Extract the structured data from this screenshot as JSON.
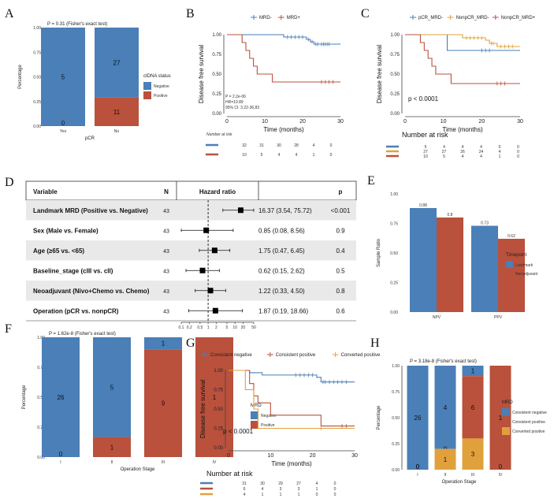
{
  "colors": {
    "blue": "#4A7FB7",
    "red": "#B9513C",
    "orange": "#E0A13C",
    "grey": "#e9e9e9",
    "dark": "#111111"
  },
  "chart_data": [
    {
      "panel": "A",
      "type": "bar",
      "stacked": true,
      "percent": true,
      "title": "P = 0.31 (Fisher's exact test)",
      "xlabel": "pCR",
      "ylabel": "Percentage",
      "categories": [
        "Yes",
        "No"
      ],
      "yticks": [
        "0.00",
        "0.25",
        "0.50",
        "0.75",
        "1.00"
      ],
      "legend_title": "ctDNA status",
      "legend_position": "right",
      "series": [
        {
          "name": "Negative",
          "color": "#4A7FB7",
          "counts": [
            5,
            27
          ],
          "fractions": [
            1.0,
            0.711
          ]
        },
        {
          "name": "Positive",
          "color": "#B9513C",
          "counts": [
            0,
            11
          ],
          "fractions": [
            0.0,
            0.289
          ]
        }
      ]
    },
    {
      "panel": "B",
      "type": "line",
      "subtype": "kaplan-meier",
      "xlabel": "Time (months)",
      "ylabel": "Disease free survival",
      "xticks": [
        "0",
        "10",
        "20",
        "30"
      ],
      "yticks": [
        "0.00",
        "0.25",
        "0.50",
        "0.75",
        "1.00"
      ],
      "xlim": [
        0,
        30
      ],
      "ylim": [
        0,
        1
      ],
      "legend": [
        {
          "name": "MRD-",
          "color": "#4A7FB7"
        },
        {
          "name": "MRD+",
          "color": "#B9513C"
        }
      ],
      "annotation": [
        "P = 2.2e-06",
        "HR=10.89",
        "95% CI: 3.22-36.83"
      ],
      "series": [
        {
          "name": "MRD-",
          "color": "#4A7FB7",
          "x": [
            0,
            14,
            15,
            21,
            22,
            23,
            30
          ],
          "y": [
            1,
            1,
            0.97,
            0.94,
            0.91,
            0.88,
            0.88
          ],
          "censor_x": [
            16,
            17,
            18,
            19,
            20,
            21.5,
            22.5,
            23.5,
            24,
            25,
            25.5,
            26,
            26.5,
            27
          ]
        },
        {
          "name": "MRD+",
          "color": "#B9513C",
          "x": [
            0,
            3,
            4,
            5,
            6,
            7,
            8,
            12,
            30
          ],
          "y": [
            1,
            1,
            0.9,
            0.8,
            0.7,
            0.6,
            0.5,
            0.4,
            0.4
          ],
          "censor_x": [
            25,
            26,
            27,
            28
          ]
        }
      ],
      "risk_table": {
        "title": "Number at risk",
        "rows": [
          {
            "color": "#4A7FB7",
            "values": [
              "32",
              "31",
              "30",
              "28",
              "4",
              "0"
            ]
          },
          {
            "color": "#B9513C",
            "values": [
              "10",
              "5",
              "4",
              "4",
              "1",
              "0"
            ]
          }
        ]
      }
    },
    {
      "panel": "C",
      "type": "line",
      "subtype": "kaplan-meier",
      "xlabel": "Time (months)",
      "ylabel": "Disease free survival",
      "xticks": [
        "0",
        "10",
        "20",
        "30"
      ],
      "yticks": [
        "0.00",
        "0.25",
        "0.50",
        "0.75",
        "1.00"
      ],
      "xlim": [
        0,
        30
      ],
      "ylim": [
        0,
        1
      ],
      "legend": [
        {
          "name": "pCR_MRD-",
          "color": "#4A7FB7"
        },
        {
          "name": "NonpCR_MRD-",
          "color": "#E0A13C"
        },
        {
          "name": "NonpCR_MRD+",
          "color": "#B9513C"
        }
      ],
      "annotation": [
        "p < 0.0001"
      ],
      "series": [
        {
          "name": "pCR_MRD-",
          "color": "#4A7FB7",
          "x": [
            0,
            10,
            11,
            30
          ],
          "y": [
            1,
            1,
            0.8,
            0.8
          ],
          "censor_x": [
            20,
            21,
            22
          ]
        },
        {
          "name": "NonpCR_MRD-",
          "color": "#E0A13C",
          "x": [
            0,
            14,
            15,
            21,
            22,
            24,
            30
          ],
          "y": [
            1,
            1,
            0.96,
            0.93,
            0.89,
            0.85,
            0.85
          ],
          "censor_x": [
            16,
            17,
            18,
            19,
            20,
            22.5,
            23,
            25,
            26,
            27,
            28
          ]
        },
        {
          "name": "NonpCR_MRD+",
          "color": "#B9513C",
          "x": [
            0,
            3,
            4,
            5,
            6,
            7,
            8,
            12,
            30
          ],
          "y": [
            1,
            1,
            0.9,
            0.8,
            0.7,
            0.6,
            0.5,
            0.38,
            0.38
          ],
          "censor_x": [
            24,
            25,
            26
          ]
        }
      ],
      "risk_table": {
        "title": "Number at risk",
        "rows": [
          {
            "color": "#4A7FB7",
            "values": [
              "5",
              "4",
              "4",
              "4",
              "0",
              "0"
            ]
          },
          {
            "color": "#E0A13C",
            "values": [
              "27",
              "27",
              "26",
              "24",
              "4",
              "0"
            ]
          },
          {
            "color": "#B9513C",
            "values": [
              "10",
              "5",
              "4",
              "4",
              "1",
              "0"
            ]
          }
        ]
      }
    },
    {
      "panel": "D",
      "type": "forest",
      "headers": {
        "variable": "Variable",
        "n": "N",
        "hr": "Hazard ratio",
        "p": "p"
      },
      "xticks": [
        "0.1",
        "0.2",
        "0.5",
        "1",
        "2",
        "5",
        "10",
        "20",
        "50"
      ],
      "rows": [
        {
          "label": "Landmark MRD (Positive vs. Negative)",
          "n": "43",
          "text": "16.37 (3.54, 75.72)",
          "p": "<0.001",
          "hr": 16.37,
          "lo": 3.54,
          "hi": 75.72
        },
        {
          "label": "Sex (Male vs. Female)",
          "n": "43",
          "text": "0.85 (0.08, 8.56)",
          "p": "0.9",
          "hr": 0.85,
          "lo": 0.08,
          "hi": 8.56
        },
        {
          "label": "Age (≥65 vs. <65)",
          "n": "43",
          "text": "1.75 (0.47, 6.45)",
          "p": "0.4",
          "hr": 1.75,
          "lo": 0.47,
          "hi": 6.45
        },
        {
          "label": "Baseline_stage (cIII vs. cII)",
          "n": "43",
          "text": "0.62 (0.15, 2.62)",
          "p": "0.5",
          "hr": 0.62,
          "lo": 0.15,
          "hi": 2.62
        },
        {
          "label": "Neoadjuvant (Nivo+Chemo vs. Chemo)",
          "n": "43",
          "text": "1.22 (0.33, 4.50)",
          "p": "0.8",
          "hr": 1.22,
          "lo": 0.33,
          "hi": 4.5
        },
        {
          "label": "Operation (pCR vs. nonpCR)",
          "n": "43",
          "text": "1.87 (0.19, 18.66)",
          "p": "0.6",
          "hr": 1.87,
          "lo": 0.19,
          "hi": 18.66
        }
      ]
    },
    {
      "panel": "E",
      "type": "bar",
      "grouped": true,
      "ylabel": "Sample Ratio",
      "categories": [
        "NPV",
        "PPV"
      ],
      "yticks": [
        "0.00",
        "0.25",
        "0.50",
        "0.75",
        "1.00"
      ],
      "ylim": [
        0,
        1
      ],
      "legend_title": "Timepoint",
      "legend_position": "right",
      "series": [
        {
          "name": "Landmark",
          "color": "#4A7FB7",
          "values": [
            0.88,
            0.73
          ],
          "labels": [
            "0.88",
            "0.73"
          ]
        },
        {
          "name": "Neoadjuvant",
          "color": "#B9513C",
          "values": [
            0.8,
            0.62
          ],
          "labels": [
            "0.8",
            "0.62"
          ]
        }
      ]
    },
    {
      "panel": "F",
      "type": "bar",
      "stacked": true,
      "percent": true,
      "title": "P = 1.62e-8 (Fisher's exact test)",
      "xlabel": "Operation Stage",
      "ylabel": "Percentage",
      "categories": [
        "I",
        "II",
        "III",
        "IV"
      ],
      "yticks": [
        "0.00",
        "0.25",
        "0.50",
        "0.75",
        "1.00"
      ],
      "legend_title": "MRD",
      "legend_position": "right",
      "series": [
        {
          "name": "Negative",
          "color": "#4A7FB7",
          "counts": [
            26,
            5,
            1,
            0
          ],
          "fractions": [
            1.0,
            0.833,
            0.1,
            0.0
          ]
        },
        {
          "name": "Positive",
          "color": "#B9513C",
          "counts": [
            0,
            1,
            9,
            1
          ],
          "fractions": [
            0.0,
            0.167,
            0.9,
            1.0
          ]
        }
      ]
    },
    {
      "panel": "G",
      "type": "line",
      "subtype": "kaplan-meier",
      "xlabel": "Time (months)",
      "ylabel": "Disease free survival",
      "xticks": [
        "0",
        "10",
        "20",
        "30"
      ],
      "yticks": [
        "0.00",
        "0.25",
        "0.50",
        "0.75",
        "1.00"
      ],
      "xlim": [
        0,
        30
      ],
      "ylim": [
        0,
        1
      ],
      "legend": [
        {
          "name": "Consistent negative",
          "color": "#4A7FB7"
        },
        {
          "name": "Consistent positive",
          "color": "#B9513C"
        },
        {
          "name": "Converted positive",
          "color": "#E0A13C"
        }
      ],
      "annotation": [
        "p < 0.0001"
      ],
      "series": [
        {
          "name": "Consistent negative",
          "color": "#4A7FB7",
          "x": [
            0,
            3,
            5,
            8,
            14,
            21,
            22,
            30
          ],
          "y": [
            1,
            1,
            0.97,
            0.94,
            0.94,
            0.91,
            0.85,
            0.85
          ],
          "censor_x": [
            16,
            17,
            18,
            19,
            20,
            22.5,
            23,
            24,
            25,
            26,
            27,
            28
          ]
        },
        {
          "name": "Consistent positive",
          "color": "#B9513C",
          "x": [
            0,
            4,
            5,
            6,
            7,
            10,
            22,
            30
          ],
          "y": [
            1,
            1,
            0.83,
            0.67,
            0.58,
            0.42,
            0.28,
            0.28
          ],
          "censor_x": [
            27,
            28
          ]
        },
        {
          "name": "Converted positive",
          "color": "#E0A13C",
          "x": [
            0,
            3,
            4,
            6,
            7,
            30
          ],
          "y": [
            1,
            1,
            0.75,
            0.5,
            0.25,
            0.25
          ],
          "censor_x": [
            22
          ]
        }
      ],
      "risk_table": {
        "title": "Number at risk",
        "rows": [
          {
            "color": "#4A7FB7",
            "values": [
              "31",
              "30",
              "29",
              "27",
              "4",
              "0"
            ]
          },
          {
            "color": "#B9513C",
            "values": [
              "6",
              "4",
              "3",
              "3",
              "1",
              "0"
            ]
          },
          {
            "color": "#E0A13C",
            "values": [
              "4",
              "1",
              "1",
              "1",
              "0",
              "0"
            ]
          }
        ]
      }
    },
    {
      "panel": "H",
      "type": "bar",
      "stacked": true,
      "percent": true,
      "title": "P = 3.18e-8 (Fisher's exact test)",
      "xlabel": "Operation Stage",
      "ylabel": "Percentage",
      "categories": [
        "I",
        "II",
        "III",
        "IV"
      ],
      "yticks": [
        "0.00",
        "0.25",
        "0.50",
        "0.75",
        "1.00"
      ],
      "legend_title": "MRD",
      "legend_position": "right",
      "series": [
        {
          "name": "Consistent negative",
          "color": "#4A7FB7",
          "counts": [
            26,
            4,
            1,
            0
          ],
          "fractions": [
            1.0,
            0.8,
            0.1,
            0.0
          ]
        },
        {
          "name": "Consistent positive",
          "color": "#B9513C",
          "counts": [
            0,
            0,
            6,
            1
          ],
          "fractions": [
            0.0,
            0.0,
            0.6,
            1.0
          ]
        },
        {
          "name": "Converted positive",
          "color": "#E0A13C",
          "counts": [
            0,
            1,
            3,
            0
          ],
          "fractions": [
            0.0,
            0.2,
            0.3,
            0.0
          ]
        }
      ]
    }
  ]
}
